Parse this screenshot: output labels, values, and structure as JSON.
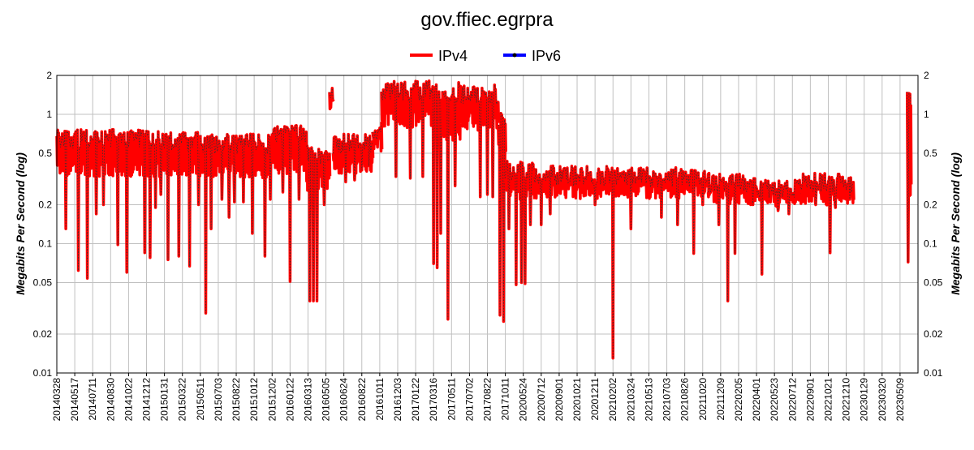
{
  "chart_data": {
    "type": "line",
    "title": "gov.ffiec.egrpra",
    "ylabel": "Megabits Per Second (log)",
    "ylabel_right": "Megabits Per Second (log)",
    "yscale": "log",
    "ylim": [
      0.01,
      2
    ],
    "grid": true,
    "legend_position": "top-center",
    "y_ticks": [
      2,
      1,
      0.5,
      0.2,
      0.1,
      0.05,
      0.02,
      0.01
    ],
    "y_tick_labels": [
      "2",
      "1",
      "0.5",
      "0.2",
      "0.1",
      "0.05",
      "0.02",
      "0.01"
    ],
    "categories": [
      "20140328",
      "20140517",
      "20140711",
      "20140830",
      "20141022",
      "20141212",
      "20150131",
      "20150322",
      "20150511",
      "20150703",
      "20150822",
      "20151012",
      "20151202",
      "20160122",
      "20160313",
      "20160505",
      "20160624",
      "20160822",
      "20161011",
      "20161203",
      "20170122",
      "20170316",
      "20170511",
      "20170702",
      "20170822",
      "20171011",
      "20200524",
      "20200712",
      "20200901",
      "20201021",
      "20201211",
      "20210202",
      "20210324",
      "20210513",
      "20210703",
      "20210826",
      "20211020",
      "20211209",
      "20220205",
      "20220401",
      "20220523",
      "20220712",
      "20220901",
      "20221021",
      "20221210",
      "20230129",
      "20230320",
      "20230509"
    ],
    "series": [
      {
        "name": "IPv4",
        "color": "#ff0000",
        "segments": [
          {
            "start": 0,
            "end": 3.0,
            "base": 0.66,
            "low": 0.4,
            "spikes": [
              [
                0.5,
                0.13
              ],
              [
                1.2,
                0.062
              ],
              [
                1.7,
                0.054
              ],
              [
                2.2,
                0.17
              ],
              [
                2.6,
                0.2
              ]
            ]
          },
          {
            "start": 3.0,
            "end": 6.0,
            "base": 0.66,
            "low": 0.4,
            "spikes": [
              [
                3.4,
                0.098
              ],
              [
                3.9,
                0.06
              ],
              [
                4.9,
                0.085
              ],
              [
                5.2,
                0.078
              ],
              [
                5.5,
                0.19
              ],
              [
                5.8,
                0.24
              ]
            ]
          },
          {
            "start": 6.0,
            "end": 8.0,
            "base": 0.62,
            "low": 0.4,
            "spikes": [
              [
                6.2,
                0.075
              ],
              [
                6.8,
                0.08
              ],
              [
                7.4,
                0.067
              ],
              [
                7.9,
                0.2
              ]
            ]
          },
          {
            "start": 8.0,
            "end": 10.0,
            "base": 0.6,
            "low": 0.38,
            "spikes": [
              [
                8.3,
                0.029
              ],
              [
                8.6,
                0.13
              ],
              [
                9.2,
                0.22
              ],
              [
                9.6,
                0.16
              ],
              [
                9.9,
                0.21
              ]
            ]
          },
          {
            "start": 10.0,
            "end": 12.0,
            "base": 0.6,
            "low": 0.38,
            "spikes": [
              [
                10.4,
                0.21
              ],
              [
                10.9,
                0.12
              ],
              [
                11.6,
                0.08
              ],
              [
                11.9,
                0.22
              ]
            ]
          },
          {
            "start": 12.0,
            "end": 13.9,
            "base": 0.7,
            "low": 0.42,
            "spikes": [
              [
                12.6,
                0.25
              ],
              [
                13.0,
                0.051
              ],
              [
                13.5,
                0.22
              ]
            ]
          },
          {
            "start": 13.9,
            "end": 15.2,
            "base": 0.5,
            "low": 0.3,
            "spikes": [
              [
                14.1,
                0.036
              ],
              [
                14.3,
                0.036
              ],
              [
                14.5,
                0.036
              ],
              [
                14.9,
                0.2
              ]
            ]
          },
          {
            "start": 15.2,
            "end": 15.4,
            "base": 1.4,
            "low": 1.3,
            "spikes": []
          },
          {
            "start": 15.4,
            "end": 17.6,
            "base": 0.6,
            "low": 0.42,
            "spikes": [
              [
                16.1,
                0.3
              ],
              [
                16.6,
                0.31
              ],
              [
                17.0,
                0.37
              ],
              [
                17.4,
                0.4
              ]
            ]
          },
          {
            "start": 17.6,
            "end": 18.1,
            "base": 0.78,
            "low": 0.6,
            "spikes": []
          },
          {
            "start": 18.1,
            "end": 21.5,
            "base": 1.55,
            "low": 0.95,
            "spikes": [
              [
                18.9,
                0.33
              ],
              [
                19.7,
                0.32
              ],
              [
                20.4,
                0.33
              ],
              [
                21.0,
                0.07
              ],
              [
                21.2,
                0.065
              ],
              [
                21.4,
                0.12
              ]
            ]
          },
          {
            "start": 21.5,
            "end": 22.5,
            "base": 1.5,
            "low": 0.75,
            "spikes": [
              [
                21.8,
                0.026
              ],
              [
                22.2,
                0.28
              ]
            ]
          },
          {
            "start": 22.5,
            "end": 24.6,
            "base": 1.45,
            "low": 0.9,
            "spikes": [
              [
                23.6,
                0.23
              ],
              [
                24.0,
                0.24
              ],
              [
                24.3,
                0.23
              ]
            ]
          },
          {
            "start": 24.6,
            "end": 25.0,
            "base": 0.95,
            "low": 0.5,
            "spikes": [
              [
                24.7,
                0.028
              ],
              [
                24.9,
                0.025
              ]
            ]
          },
          {
            "start": 25.0,
            "end": 26.6,
            "base": 0.37,
            "low": 0.26,
            "spikes": [
              [
                25.2,
                0.13
              ],
              [
                25.6,
                0.048
              ],
              [
                25.9,
                0.05
              ],
              [
                26.1,
                0.049
              ],
              [
                26.4,
                0.14
              ]
            ]
          },
          {
            "start": 26.6,
            "end": 31.3,
            "base": 0.34,
            "low": 0.27,
            "spikes": [
              [
                27.0,
                0.14
              ],
              [
                27.5,
                0.17
              ],
              [
                28.8,
                0.28
              ],
              [
                30.0,
                0.2
              ],
              [
                31.0,
                0.013
              ]
            ]
          },
          {
            "start": 31.3,
            "end": 36.3,
            "base": 0.33,
            "low": 0.27,
            "spikes": [
              [
                32.0,
                0.13
              ],
              [
                33.7,
                0.16
              ],
              [
                34.6,
                0.14
              ],
              [
                35.5,
                0.084
              ],
              [
                36.0,
                0.2
              ]
            ]
          },
          {
            "start": 36.3,
            "end": 39.0,
            "base": 0.3,
            "low": 0.24,
            "spikes": [
              [
                36.9,
                0.14
              ],
              [
                37.4,
                0.036
              ],
              [
                37.8,
                0.084
              ],
              [
                38.8,
                0.2
              ]
            ]
          },
          {
            "start": 39.0,
            "end": 41.5,
            "base": 0.27,
            "low": 0.23,
            "spikes": [
              [
                39.3,
                0.058
              ],
              [
                40.2,
                0.18
              ],
              [
                40.8,
                0.17
              ]
            ]
          },
          {
            "start": 41.5,
            "end": 44.4,
            "base": 0.3,
            "low": 0.24,
            "spikes": [
              [
                42.3,
                0.2
              ],
              [
                43.1,
                0.085
              ],
              [
                43.4,
                0.19
              ],
              [
                44.2,
                0.22
              ]
            ]
          },
          {
            "start": 47.4,
            "end": 47.6,
            "base": 1.4,
            "low": 0.28,
            "spikes": [
              [
                47.45,
                0.072
              ]
            ]
          }
        ]
      },
      {
        "name": "IPv6",
        "color": "#0000ff",
        "segments": []
      }
    ]
  }
}
